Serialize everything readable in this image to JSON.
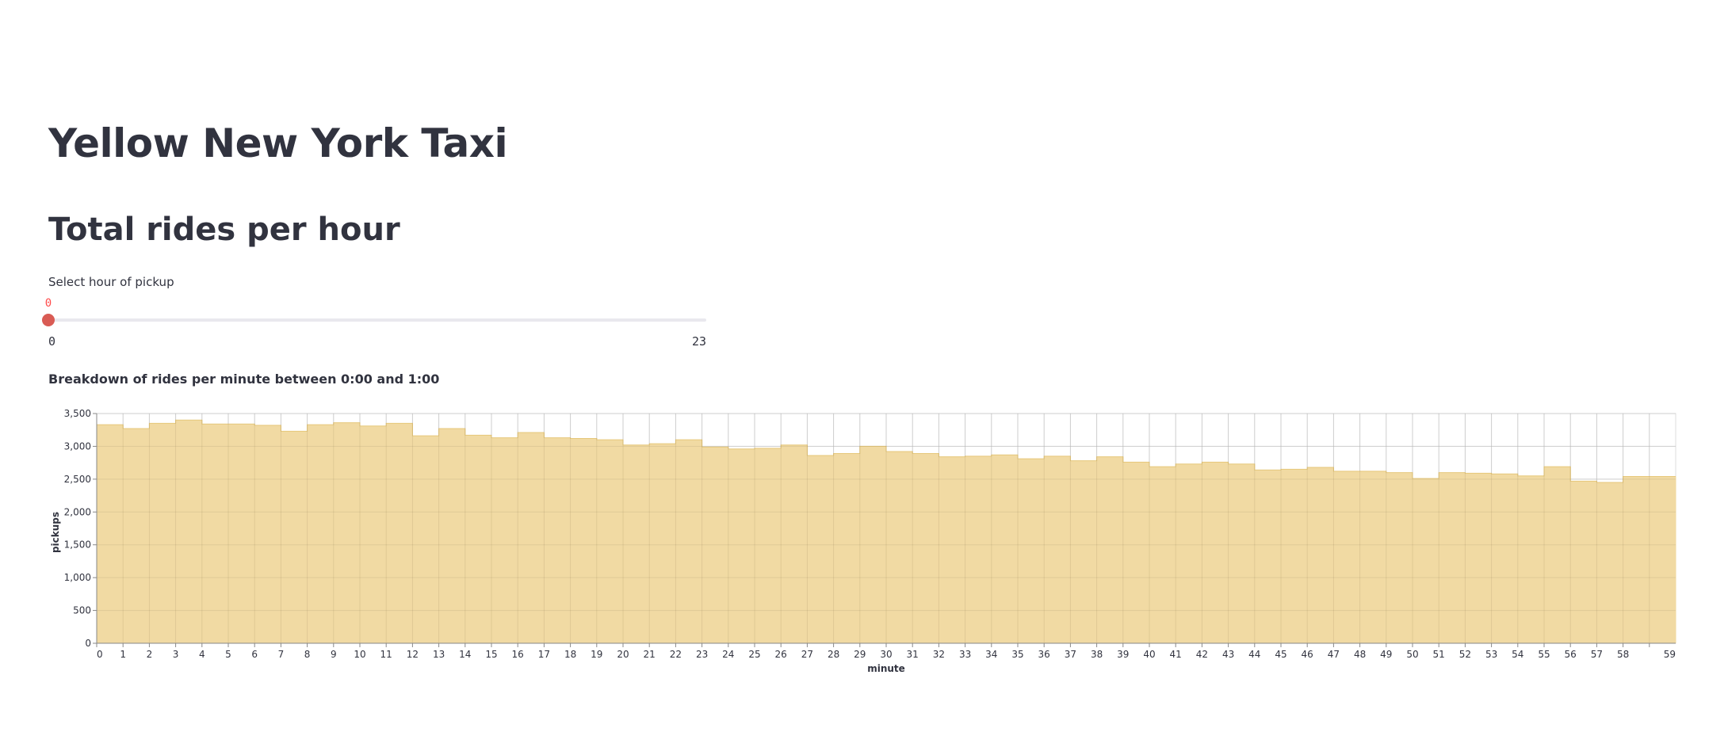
{
  "app": {
    "title": "Yellow New York Taxi"
  },
  "section": {
    "title": "Total rides per hour"
  },
  "slider": {
    "label": "Select hour of pickup",
    "value": 0,
    "value_text": "0",
    "min": 0,
    "max": 23,
    "min_text": "0",
    "max_text": "23",
    "accent_color": "#ff4b4b"
  },
  "caption": "Breakdown of rides per minute between 0:00 and 1:00",
  "chart_menu": {
    "icon": "more-horizontal-icon",
    "glyph": "⋯"
  },
  "chart_data": {
    "type": "area",
    "xlabel": "minute",
    "ylabel": "pickups",
    "ylim": [
      0,
      3500
    ],
    "yticks": [
      0,
      500,
      1000,
      1500,
      2000,
      2500,
      3000,
      3500
    ],
    "ytick_labels": [
      "0",
      "500",
      "1,000",
      "1,500",
      "2,000",
      "2,500",
      "3,000",
      "3,500"
    ],
    "x": [
      0,
      1,
      2,
      3,
      4,
      5,
      6,
      7,
      8,
      9,
      10,
      11,
      12,
      13,
      14,
      15,
      16,
      17,
      18,
      19,
      20,
      21,
      22,
      23,
      24,
      25,
      26,
      27,
      28,
      29,
      30,
      31,
      32,
      33,
      34,
      35,
      36,
      37,
      38,
      39,
      40,
      41,
      42,
      43,
      44,
      45,
      46,
      47,
      48,
      49,
      50,
      51,
      52,
      53,
      54,
      55,
      56,
      57,
      58,
      59
    ],
    "values": [
      3330,
      3270,
      3350,
      3400,
      3340,
      3340,
      3320,
      3230,
      3330,
      3360,
      3310,
      3350,
      3160,
      3270,
      3170,
      3130,
      3210,
      3130,
      3120,
      3100,
      3020,
      3040,
      3100,
      2990,
      2960,
      2970,
      3020,
      2860,
      2890,
      3000,
      2920,
      2890,
      2840,
      2850,
      2870,
      2810,
      2850,
      2780,
      2840,
      2760,
      2690,
      2730,
      2760,
      2730,
      2640,
      2650,
      2680,
      2620,
      2620,
      2600,
      2510,
      2600,
      2590,
      2580,
      2550,
      2690,
      2470,
      2450,
      2540,
      2540
    ],
    "grid": true,
    "fill_color": "#f0d89e",
    "stroke_color": "#e6c77a",
    "legend": "none"
  }
}
